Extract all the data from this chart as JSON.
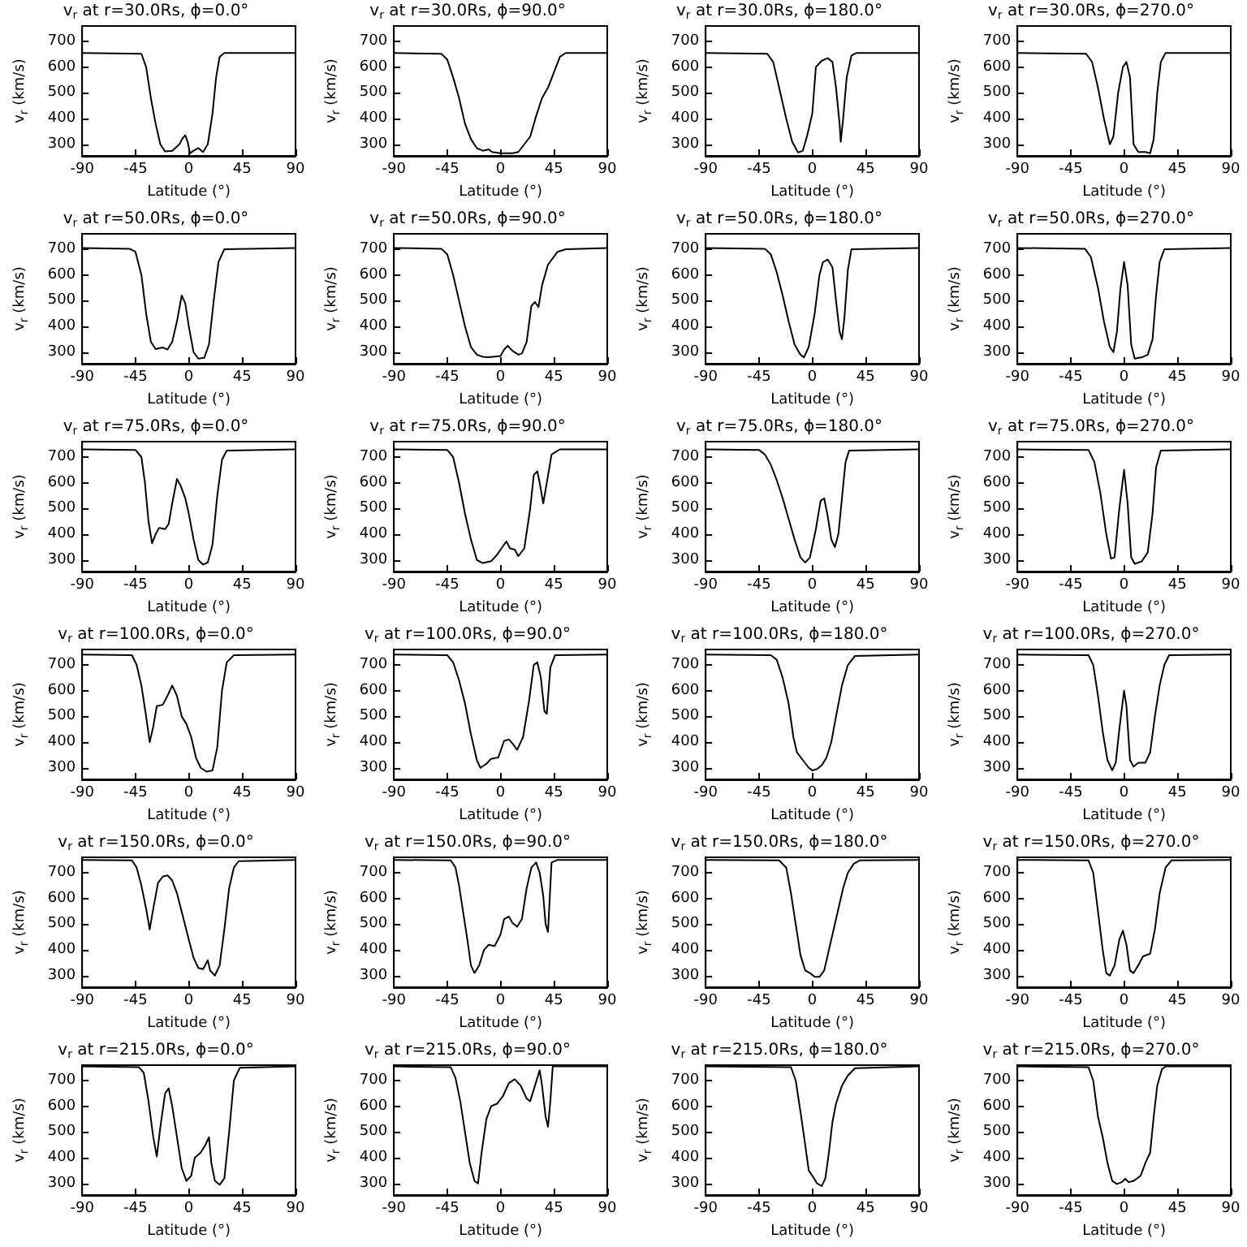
{
  "chart_data": [
    {
      "type": "line",
      "title": "v$_{r}$ at r=30.0Rs, ϕ=0.0°",
      "xlabel": "Latitude (°)",
      "ylabel": "v$_{r}$ (km/s)",
      "xlim": [
        -90,
        90
      ],
      "xticks": [
        -90,
        -45,
        0,
        45,
        90
      ],
      "ylim": [
        255,
        760
      ],
      "yticks": [
        300,
        400,
        500,
        600,
        700
      ],
      "series": [
        {
          "color": "#000000",
          "x": [
            -90,
            -40,
            -36,
            -32,
            -28,
            -24,
            -20,
            -14,
            -8,
            -5,
            -3,
            -1,
            1,
            4,
            8,
            12,
            16,
            20,
            23,
            26,
            30,
            90
          ],
          "values": [
            655,
            652,
            600,
            480,
            380,
            300,
            272,
            275,
            300,
            325,
            335,
            310,
            265,
            275,
            285,
            270,
            300,
            420,
            560,
            640,
            655,
            655
          ]
        }
      ]
    },
    {
      "type": "line",
      "title": "v$_{r}$ at r=30.0Rs, ϕ=90.0°",
      "xlabel": "Latitude (°)",
      "ylabel": "v$_{r}$ (km/s)",
      "xlim": [
        -90,
        90
      ],
      "xticks": [
        -90,
        -45,
        0,
        45,
        90
      ],
      "ylim": [
        255,
        760
      ],
      "yticks": [
        300,
        400,
        500,
        600,
        700
      ],
      "series": [
        {
          "color": "#000000",
          "x": [
            -90,
            -50,
            -45,
            -40,
            -35,
            -30,
            -25,
            -20,
            -15,
            -10,
            -7,
            0,
            10,
            15,
            20,
            25,
            30,
            35,
            40,
            45,
            50,
            55,
            90
          ],
          "values": [
            655,
            652,
            630,
            560,
            480,
            380,
            320,
            285,
            275,
            280,
            270,
            265,
            265,
            270,
            300,
            330,
            410,
            480,
            520,
            580,
            640,
            655,
            655
          ]
        }
      ]
    },
    {
      "type": "line",
      "title": "v$_{r}$ at r=30.0Rs, ϕ=180.0°",
      "xlabel": "Latitude (°)",
      "ylabel": "v$_{r}$ (km/s)",
      "xlim": [
        -90,
        90
      ],
      "xticks": [
        -90,
        -45,
        0,
        45,
        90
      ],
      "ylim": [
        255,
        760
      ],
      "yticks": [
        300,
        400,
        500,
        600,
        700
      ],
      "series": [
        {
          "color": "#000000",
          "x": [
            -90,
            -38,
            -33,
            -28,
            -22,
            -17,
            -12,
            -8,
            -4,
            0,
            3,
            8,
            13,
            17,
            20,
            23,
            24,
            26,
            29,
            33,
            37,
            90
          ],
          "values": [
            655,
            652,
            620,
            520,
            400,
            310,
            268,
            275,
            340,
            420,
            600,
            625,
            635,
            620,
            520,
            380,
            310,
            400,
            560,
            645,
            655,
            655
          ]
        }
      ]
    },
    {
      "type": "line",
      "title": "v$_{r}$ at r=30.0Rs, ϕ=270.0°",
      "xlabel": "Latitude (°)",
      "ylabel": "v$_{r}$ (km/s)",
      "xlim": [
        -90,
        90
      ],
      "xticks": [
        -90,
        -45,
        0,
        45,
        90
      ],
      "ylim": [
        255,
        760
      ],
      "yticks": [
        300,
        400,
        500,
        600,
        700
      ],
      "series": [
        {
          "color": "#000000",
          "x": [
            -90,
            -32,
            -27,
            -22,
            -17,
            -12,
            -9,
            -5,
            -1,
            2,
            5,
            8,
            12,
            18,
            22,
            25,
            28,
            31,
            35,
            90
          ],
          "values": [
            655,
            652,
            620,
            520,
            400,
            300,
            330,
            500,
            600,
            620,
            560,
            300,
            270,
            270,
            265,
            320,
            500,
            620,
            655,
            655
          ]
        }
      ]
    },
    {
      "type": "line",
      "title": "v$_{r}$ at r=50.0Rs, ϕ=0.0°",
      "xlabel": "Latitude (°)",
      "ylabel": "v$_{r}$ (km/s)",
      "xlim": [
        -90,
        90
      ],
      "xticks": [
        -90,
        -45,
        0,
        45,
        90
      ],
      "ylim": [
        255,
        760
      ],
      "yticks": [
        300,
        400,
        500,
        600,
        700
      ],
      "series": [
        {
          "color": "#000000",
          "x": [
            -90,
            -50,
            -45,
            -40,
            -36,
            -32,
            -28,
            -22,
            -18,
            -14,
            -10,
            -6,
            -3,
            0,
            4,
            8,
            13,
            17,
            21,
            25,
            30,
            90
          ],
          "values": [
            705,
            702,
            690,
            600,
            450,
            340,
            312,
            318,
            310,
            340,
            420,
            520,
            490,
            400,
            300,
            275,
            278,
            330,
            500,
            650,
            700,
            705
          ]
        }
      ]
    },
    {
      "type": "line",
      "title": "v$_{r}$ at r=50.0Rs, ϕ=90.0°",
      "xlabel": "Latitude (°)",
      "ylabel": "v$_{r}$ (km/s)",
      "xlim": [
        -90,
        90
      ],
      "xticks": [
        -90,
        -45,
        0,
        45,
        90
      ],
      "ylim": [
        255,
        760
      ],
      "yticks": [
        300,
        400,
        500,
        600,
        700
      ],
      "series": [
        {
          "color": "#000000",
          "x": [
            -90,
            -50,
            -45,
            -40,
            -35,
            -30,
            -25,
            -20,
            -15,
            -10,
            0,
            3,
            6,
            10,
            15,
            18,
            22,
            26,
            29,
            32,
            35,
            40,
            48,
            55,
            90
          ],
          "values": [
            705,
            702,
            680,
            600,
            500,
            400,
            320,
            290,
            282,
            280,
            285,
            310,
            325,
            305,
            290,
            295,
            340,
            480,
            495,
            475,
            560,
            640,
            690,
            700,
            705
          ]
        }
      ]
    },
    {
      "type": "line",
      "title": "v$_{r}$ at r=50.0Rs, ϕ=180.0°",
      "xlabel": "Latitude (°)",
      "ylabel": "v$_{r}$ (km/s)",
      "xlim": [
        -90,
        90
      ],
      "xticks": [
        -90,
        -45,
        0,
        45,
        90
      ],
      "ylim": [
        255,
        760
      ],
      "yticks": [
        300,
        400,
        500,
        600,
        700
      ],
      "series": [
        {
          "color": "#000000",
          "x": [
            -90,
            -40,
            -35,
            -30,
            -25,
            -20,
            -15,
            -10,
            -7,
            -3,
            2,
            6,
            9,
            13,
            17,
            20,
            23,
            25,
            27,
            30,
            33,
            90
          ],
          "values": [
            705,
            702,
            680,
            610,
            520,
            420,
            330,
            290,
            280,
            320,
            450,
            600,
            650,
            660,
            630,
            500,
            380,
            350,
            430,
            620,
            700,
            705
          ]
        }
      ]
    },
    {
      "type": "line",
      "title": "v$_{r}$ at r=50.0Rs, ϕ=270.0°",
      "xlabel": "Latitude (°)",
      "ylabel": "v$_{r}$ (km/s)",
      "xlim": [
        -90,
        90
      ],
      "xticks": [
        -90,
        -45,
        0,
        45,
        90
      ],
      "ylim": [
        255,
        760
      ],
      "yticks": [
        300,
        400,
        500,
        600,
        700
      ],
      "series": [
        {
          "color": "#000000",
          "x": [
            -90,
            -33,
            -28,
            -22,
            -17,
            -12,
            -9,
            -6,
            -3,
            0,
            3,
            6,
            9,
            15,
            20,
            24,
            27,
            30,
            34,
            90
          ],
          "values": [
            705,
            702,
            670,
            550,
            420,
            320,
            300,
            380,
            550,
            650,
            560,
            330,
            275,
            280,
            290,
            350,
            520,
            650,
            700,
            705
          ]
        }
      ]
    },
    {
      "type": "line",
      "title": "v$_{r}$ at r=75.0Rs, ϕ=0.0°",
      "xlabel": "Latitude (°)",
      "ylabel": "v$_{r}$ (km/s)",
      "xlim": [
        -90,
        90
      ],
      "xticks": [
        -90,
        -45,
        0,
        45,
        90
      ],
      "ylim": [
        255,
        760
      ],
      "yticks": [
        300,
        400,
        500,
        600,
        700
      ],
      "series": [
        {
          "color": "#000000",
          "x": [
            -90,
            -45,
            -40,
            -37,
            -34,
            -31,
            -28,
            -25,
            -20,
            -17,
            -14,
            -10,
            -7,
            -3,
            0,
            4,
            8,
            12,
            16,
            20,
            24,
            28,
            32,
            90
          ],
          "values": [
            730,
            728,
            700,
            600,
            450,
            365,
            400,
            425,
            420,
            440,
            520,
            615,
            590,
            540,
            480,
            380,
            300,
            282,
            290,
            360,
            550,
            690,
            725,
            730
          ]
        }
      ]
    },
    {
      "type": "line",
      "title": "v$_{r}$ at r=75.0Rs, ϕ=90.0°",
      "xlabel": "Latitude (°)",
      "ylabel": "v$_{r}$ (km/s)",
      "xlim": [
        -90,
        90
      ],
      "xticks": [
        -90,
        -45,
        0,
        45,
        90
      ],
      "ylim": [
        255,
        760
      ],
      "yticks": [
        300,
        400,
        500,
        600,
        700
      ],
      "series": [
        {
          "color": "#000000",
          "x": [
            -90,
            -45,
            -40,
            -35,
            -30,
            -25,
            -20,
            -15,
            -8,
            -3,
            3,
            5,
            8,
            12,
            15,
            20,
            25,
            28,
            31,
            33,
            36,
            39,
            43,
            50,
            90
          ],
          "values": [
            730,
            728,
            700,
            600,
            480,
            380,
            300,
            288,
            295,
            320,
            360,
            372,
            345,
            340,
            315,
            345,
            500,
            630,
            645,
            600,
            520,
            600,
            710,
            730,
            730
          ]
        }
      ]
    },
    {
      "type": "line",
      "title": "v$_{r}$ at r=75.0Rs, ϕ=180.0°",
      "xlabel": "Latitude (°)",
      "ylabel": "v$_{r}$ (km/s)",
      "xlim": [
        -90,
        90
      ],
      "xticks": [
        -90,
        -45,
        0,
        45,
        90
      ],
      "ylim": [
        255,
        760
      ],
      "yticks": [
        300,
        400,
        500,
        600,
        700
      ],
      "series": [
        {
          "color": "#000000",
          "x": [
            -90,
            -45,
            -40,
            -35,
            -30,
            -25,
            -20,
            -15,
            -10,
            -6,
            -2,
            3,
            7,
            10,
            13,
            16,
            19,
            22,
            25,
            28,
            31,
            90
          ],
          "values": [
            730,
            728,
            710,
            670,
            610,
            540,
            460,
            380,
            310,
            290,
            310,
            420,
            530,
            540,
            470,
            380,
            350,
            400,
            540,
            680,
            725,
            730
          ]
        }
      ]
    },
    {
      "type": "line",
      "title": "v$_{r}$ at r=75.0Rs, ϕ=270.0°",
      "xlabel": "Latitude (°)",
      "ylabel": "v$_{r}$ (km/s)",
      "xlim": [
        -90,
        90
      ],
      "xticks": [
        -90,
        -45,
        0,
        45,
        90
      ],
      "ylim": [
        255,
        760
      ],
      "yticks": [
        300,
        400,
        500,
        600,
        700
      ],
      "series": [
        {
          "color": "#000000",
          "x": [
            -90,
            -30,
            -25,
            -20,
            -15,
            -11,
            -8,
            -4,
            0,
            3,
            6,
            9,
            15,
            20,
            24,
            27,
            31,
            90
          ],
          "values": [
            730,
            728,
            680,
            560,
            400,
            305,
            310,
            500,
            650,
            520,
            310,
            285,
            295,
            330,
            480,
            660,
            725,
            730
          ]
        }
      ]
    },
    {
      "type": "line",
      "title": "v$_{r}$ at r=100.0Rs, ϕ=0.0°",
      "xlabel": "Latitude (°)",
      "ylabel": "v$_{r}$ (km/s)",
      "xlim": [
        -90,
        90
      ],
      "xticks": [
        -90,
        -45,
        0,
        45,
        90
      ],
      "ylim": [
        255,
        760
      ],
      "yticks": [
        300,
        400,
        500,
        600,
        700
      ],
      "series": [
        {
          "color": "#000000",
          "x": [
            -90,
            -48,
            -44,
            -40,
            -36,
            -33,
            -30,
            -27,
            -22,
            -18,
            -14,
            -10,
            -6,
            -2,
            2,
            6,
            10,
            15,
            20,
            24,
            28,
            32,
            38,
            90
          ],
          "values": [
            740,
            738,
            700,
            620,
            500,
            400,
            460,
            540,
            545,
            580,
            620,
            580,
            500,
            470,
            420,
            340,
            300,
            285,
            290,
            380,
            600,
            710,
            738,
            740
          ]
        }
      ]
    },
    {
      "type": "line",
      "title": "v$_{r}$ at r=100.0Rs, ϕ=90.0°",
      "xlabel": "Latitude (°)",
      "ylabel": "v$_{r}$ (km/s)",
      "xlim": [
        -90,
        90
      ],
      "xticks": [
        -90,
        -45,
        0,
        45,
        90
      ],
      "ylim": [
        255,
        760
      ],
      "yticks": [
        300,
        400,
        500,
        600,
        700
      ],
      "series": [
        {
          "color": "#000000",
          "x": [
            -90,
            -45,
            -40,
            -35,
            -30,
            -25,
            -20,
            -17,
            -12,
            -8,
            -2,
            3,
            7,
            10,
            14,
            19,
            24,
            28,
            31,
            34,
            37,
            39,
            42,
            46,
            90
          ],
          "values": [
            740,
            738,
            710,
            640,
            550,
            430,
            330,
            300,
            315,
            335,
            340,
            405,
            410,
            395,
            370,
            420,
            560,
            700,
            710,
            650,
            520,
            510,
            690,
            738,
            740
          ]
        }
      ]
    },
    {
      "type": "line",
      "title": "v$_{r}$ at r=100.0Rs, ϕ=180.0°",
      "xlabel": "Latitude (°)",
      "ylabel": "v$_{r}$ (km/s)",
      "xlim": [
        -90,
        90
      ],
      "xticks": [
        -90,
        -45,
        0,
        45,
        90
      ],
      "ylim": [
        255,
        760
      ],
      "yticks": [
        300,
        400,
        500,
        600,
        700
      ],
      "series": [
        {
          "color": "#000000",
          "x": [
            -90,
            -35,
            -30,
            -25,
            -20,
            -16,
            -13,
            -8,
            -3,
            0,
            4,
            8,
            12,
            16,
            20,
            25,
            30,
            36,
            90
          ],
          "values": [
            740,
            738,
            720,
            650,
            550,
            420,
            360,
            330,
            300,
            290,
            295,
            310,
            340,
            400,
            500,
            620,
            700,
            735,
            740
          ]
        }
      ]
    },
    {
      "type": "line",
      "title": "v$_{r}$ at r=100.0Rs, ϕ=270.0°",
      "xlabel": "Latitude (°)",
      "ylabel": "v$_{r}$ (km/s)",
      "xlim": [
        -90,
        90
      ],
      "xticks": [
        -90,
        -45,
        0,
        45,
        90
      ],
      "ylim": [
        255,
        760
      ],
      "yticks": [
        300,
        400,
        500,
        600,
        700
      ],
      "series": [
        {
          "color": "#000000",
          "x": [
            -90,
            -30,
            -26,
            -22,
            -18,
            -14,
            -10,
            -7,
            -4,
            0,
            2,
            5,
            8,
            12,
            18,
            22,
            26,
            30,
            34,
            38,
            90
          ],
          "values": [
            740,
            738,
            700,
            580,
            440,
            330,
            290,
            320,
            450,
            600,
            540,
            330,
            305,
            320,
            320,
            360,
            500,
            620,
            700,
            738,
            740
          ]
        }
      ]
    },
    {
      "type": "line",
      "title": "v$_{r}$ at r=150.0Rs, ϕ=0.0°",
      "xlabel": "Latitude (°)",
      "ylabel": "v$_{r}$ (km/s)",
      "xlim": [
        -90,
        90
      ],
      "xticks": [
        -90,
        -45,
        0,
        45,
        90
      ],
      "ylim": [
        255,
        760
      ],
      "yticks": [
        300,
        400,
        500,
        600,
        700
      ],
      "series": [
        {
          "color": "#000000",
          "x": [
            -90,
            -48,
            -44,
            -40,
            -36,
            -33,
            -30,
            -26,
            -22,
            -18,
            -14,
            -10,
            -5,
            0,
            4,
            8,
            12,
            16,
            18,
            22,
            26,
            30,
            34,
            38,
            42,
            90
          ],
          "values": [
            750,
            748,
            720,
            650,
            560,
            480,
            560,
            660,
            685,
            690,
            670,
            620,
            530,
            440,
            370,
            330,
            325,
            360,
            320,
            300,
            340,
            480,
            640,
            720,
            745,
            750
          ]
        }
      ]
    },
    {
      "type": "line",
      "title": "v$_{r}$ at r=150.0Rs, ϕ=90.0°",
      "xlabel": "Latitude (°)",
      "ylabel": "v$_{r}$ (km/s)",
      "xlim": [
        -90,
        90
      ],
      "xticks": [
        -90,
        -45,
        0,
        45,
        90
      ],
      "ylim": [
        255,
        760
      ],
      "yticks": [
        300,
        400,
        500,
        600,
        700
      ],
      "series": [
        {
          "color": "#000000",
          "x": [
            -90,
            -42,
            -38,
            -35,
            -32,
            -28,
            -25,
            -22,
            -18,
            -14,
            -10,
            -5,
            0,
            3,
            7,
            10,
            14,
            18,
            22,
            26,
            30,
            33,
            36,
            38,
            40,
            41,
            43,
            48,
            90
          ],
          "values": [
            750,
            748,
            720,
            650,
            560,
            440,
            340,
            310,
            340,
            400,
            420,
            415,
            460,
            520,
            530,
            505,
            490,
            520,
            640,
            720,
            740,
            700,
            610,
            500,
            470,
            560,
            740,
            750,
            750
          ]
        }
      ]
    },
    {
      "type": "line",
      "title": "v$_{r}$ at r=150.0Rs, ϕ=180.0°",
      "xlabel": "Latitude (°)",
      "ylabel": "v$_{r}$ (km/s)",
      "xlim": [
        -90,
        90
      ],
      "xticks": [
        -90,
        -45,
        0,
        45,
        90
      ],
      "ylim": [
        255,
        760
      ],
      "yticks": [
        300,
        400,
        500,
        600,
        700
      ],
      "series": [
        {
          "color": "#000000",
          "x": [
            -90,
            -28,
            -22,
            -18,
            -14,
            -10,
            -6,
            -2,
            2,
            6,
            10,
            14,
            18,
            22,
            26,
            30,
            35,
            40,
            90
          ],
          "values": [
            750,
            748,
            720,
            620,
            500,
            380,
            320,
            310,
            295,
            295,
            320,
            400,
            480,
            560,
            640,
            700,
            735,
            748,
            750
          ]
        }
      ]
    },
    {
      "type": "line",
      "title": "v$_{r}$ at r=150.0Rs, ϕ=270.0°",
      "xlabel": "Latitude (°)",
      "ylabel": "v$_{r}$ (km/s)",
      "xlim": [
        -90,
        90
      ],
      "xticks": [
        -90,
        -45,
        0,
        45,
        90
      ],
      "ylim": [
        255,
        760
      ],
      "yticks": [
        300,
        400,
        500,
        600,
        700
      ],
      "series": [
        {
          "color": "#000000",
          "x": [
            -90,
            -30,
            -26,
            -22,
            -18,
            -15,
            -12,
            -8,
            -4,
            -1,
            2,
            5,
            8,
            12,
            16,
            22,
            26,
            30,
            35,
            40,
            90
          ],
          "values": [
            750,
            748,
            700,
            550,
            400,
            310,
            300,
            340,
            440,
            475,
            420,
            320,
            310,
            340,
            375,
            385,
            480,
            620,
            720,
            748,
            750
          ]
        }
      ]
    },
    {
      "type": "line",
      "title": "v$_{r}$ at r=215.0Rs, ϕ=0.0°",
      "xlabel": "Latitude (°)",
      "ylabel": "v$_{r}$ (km/s)",
      "xlim": [
        -90,
        90
      ],
      "xticks": [
        -90,
        -45,
        0,
        45,
        90
      ],
      "ylim": [
        255,
        760
      ],
      "yticks": [
        300,
        400,
        500,
        600,
        700
      ],
      "series": [
        {
          "color": "#000000",
          "x": [
            -90,
            -42,
            -38,
            -34,
            -30,
            -27,
            -24,
            -20,
            -17,
            -14,
            -10,
            -6,
            -2,
            2,
            5,
            10,
            14,
            17,
            19,
            22,
            26,
            30,
            34,
            38,
            43,
            90
          ],
          "values": [
            755,
            752,
            730,
            620,
            480,
            405,
            520,
            650,
            670,
            600,
            480,
            360,
            310,
            330,
            400,
            420,
            450,
            480,
            380,
            310,
            295,
            320,
            500,
            700,
            750,
            755
          ]
        }
      ]
    },
    {
      "type": "line",
      "title": "v$_{r}$ at r=215.0Rs, ϕ=90.0°",
      "xlabel": "Latitude (°)",
      "ylabel": "v$_{r}$ (km/s)",
      "xlim": [
        -90,
        90
      ],
      "xticks": [
        -90,
        -45,
        0,
        45,
        90
      ],
      "ylim": [
        255,
        760
      ],
      "yticks": [
        300,
        400,
        500,
        600,
        700
      ],
      "series": [
        {
          "color": "#000000",
          "x": [
            -90,
            -42,
            -38,
            -34,
            -30,
            -26,
            -22,
            -19,
            -16,
            -12,
            -8,
            -3,
            2,
            7,
            12,
            17,
            22,
            25,
            29,
            33,
            35,
            38,
            40,
            42,
            44,
            90
          ],
          "values": [
            755,
            752,
            710,
            620,
            500,
            380,
            310,
            300,
            420,
            550,
            600,
            610,
            640,
            690,
            705,
            680,
            630,
            620,
            680,
            740,
            680,
            560,
            520,
            620,
            755,
            755
          ]
        }
      ]
    },
    {
      "type": "line",
      "title": "v$_{r}$ at r=215.0Rs, ϕ=180.0°",
      "xlabel": "Latitude (°)",
      "ylabel": "v$_{r}$ (km/s)",
      "xlim": [
        -90,
        90
      ],
      "xticks": [
        -90,
        -45,
        0,
        45,
        90
      ],
      "ylim": [
        255,
        760
      ],
      "yticks": [
        300,
        400,
        500,
        600,
        700
      ],
      "series": [
        {
          "color": "#000000",
          "x": [
            -90,
            -18,
            -14,
            -10,
            -6,
            -3,
            0,
            4,
            8,
            11,
            14,
            17,
            20,
            25,
            30,
            36,
            90
          ],
          "values": [
            755,
            752,
            700,
            580,
            450,
            350,
            330,
            300,
            290,
            320,
            420,
            540,
            610,
            680,
            720,
            748,
            755
          ]
        }
      ]
    },
    {
      "type": "line",
      "title": "v$_{r}$ at r=215.0Rs, ϕ=270.0°",
      "xlabel": "Latitude (°)",
      "ylabel": "v$_{r}$ (km/s)",
      "xlim": [
        -90,
        90
      ],
      "xticks": [
        -90,
        -45,
        0,
        45,
        90
      ],
      "ylim": [
        255,
        760
      ],
      "yticks": [
        300,
        400,
        500,
        600,
        700
      ],
      "series": [
        {
          "color": "#000000",
          "x": [
            -90,
            -30,
            -26,
            -22,
            -18,
            -14,
            -10,
            -6,
            -2,
            1,
            4,
            8,
            14,
            18,
            22,
            25,
            28,
            32,
            35,
            90
          ],
          "values": [
            755,
            752,
            700,
            560,
            480,
            380,
            310,
            298,
            305,
            318,
            305,
            310,
            330,
            380,
            420,
            560,
            680,
            745,
            755,
            755
          ]
        }
      ]
    }
  ]
}
